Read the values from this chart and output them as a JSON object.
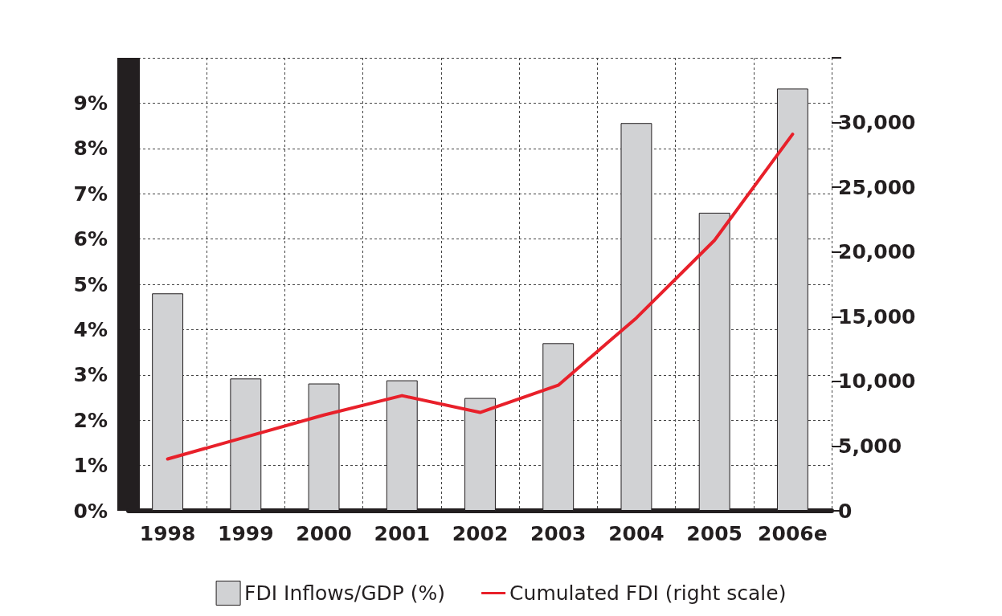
{
  "chart_data": {
    "type": "bar",
    "categories": [
      "1998",
      "1999",
      "2000",
      "2001",
      "2002",
      "2003",
      "2004",
      "2005",
      "2006e"
    ],
    "series": [
      {
        "name": "FDI Inflows/GDP (%)",
        "color": "#d1d2d4",
        "values": [
          4.8,
          2.92,
          2.81,
          2.88,
          2.49,
          3.7,
          8.56,
          6.58,
          9.32
        ]
      },
      {
        "name": "Cumulated FDI (right scale)",
        "type": "line",
        "axis": "y2",
        "color": "#e8202a",
        "marker": "none",
        "line_style": "solid",
        "values": [
          4000,
          5700,
          7400,
          8900,
          7600,
          9700,
          14900,
          20900,
          29100
        ]
      }
    ],
    "ylim": [
      0,
      10
    ],
    "yticks": [
      {
        "value": 0,
        "label": "0%"
      },
      {
        "value": 1,
        "label": "1%"
      },
      {
        "value": 2,
        "label": "2%"
      },
      {
        "value": 3,
        "label": "3%"
      },
      {
        "value": 4,
        "label": "4%"
      },
      {
        "value": 5,
        "label": "5%"
      },
      {
        "value": 6,
        "label": "6%"
      },
      {
        "value": 7,
        "label": "7%"
      },
      {
        "value": 8,
        "label": "8%"
      },
      {
        "value": 9,
        "label": "9%"
      }
    ],
    "y2lim": [
      0,
      35000
    ],
    "y2ticks": [
      0,
      {
        "value": 5000,
        "label": "5,000"
      },
      {
        "value": 10000,
        "label": "10,000"
      },
      {
        "value": 15000,
        "label": "15,000"
      },
      {
        "value": 20000,
        "label": "20,000"
      },
      {
        "value": 25000,
        "label": "25,000"
      },
      {
        "value": 30000,
        "label": "30,000"
      }
    ],
    "grid": true,
    "legend": "bottom"
  }
}
